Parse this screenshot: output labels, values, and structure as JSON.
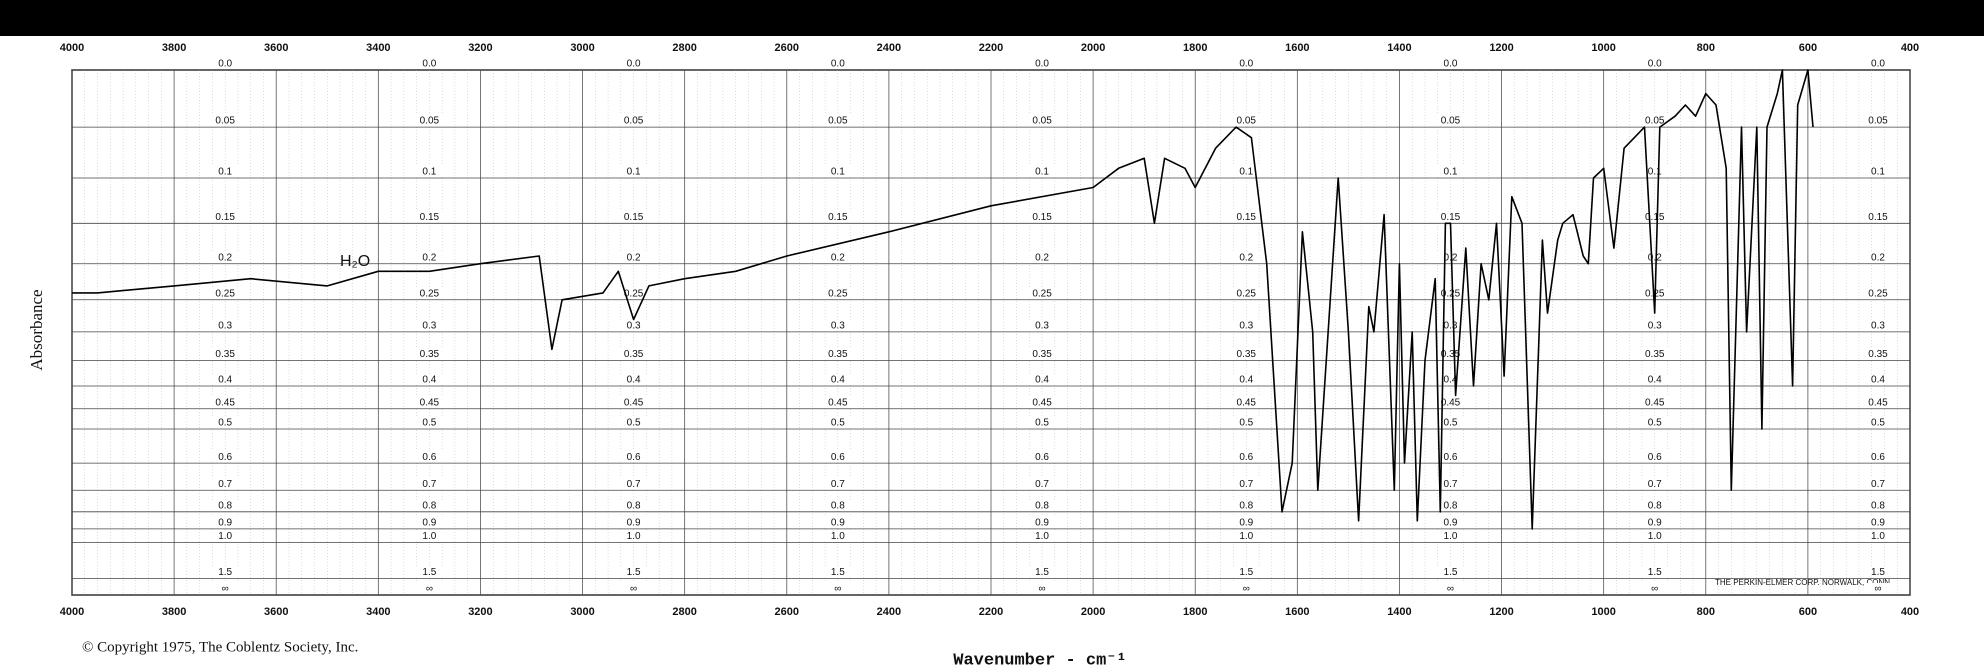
{
  "chart_data": {
    "type": "line",
    "y_label": "Absorbance",
    "x_label": "Wavenumber - cm⁻¹",
    "copyright": "© Copyright 1975, The Coblentz Society, Inc.",
    "maker": "THE PERKIN-ELMER CORP. NORWALK, CONN",
    "annotation": "H₂O",
    "y_scale": "transmittance",
    "color": "#000000",
    "grid": true,
    "xlim": [
      4000,
      400
    ],
    "xticks": [
      4000,
      3800,
      3600,
      3400,
      3200,
      3000,
      2800,
      2600,
      2400,
      2200,
      2000,
      1800,
      1600,
      1400,
      1200,
      1000,
      800,
      600,
      400
    ],
    "ylim": [
      0,
      null
    ],
    "yticks": [
      {
        "value": 0,
        "label": "0.0"
      },
      0.05,
      0.1,
      0.15,
      0.2,
      0.25,
      0.3,
      0.35,
      0.4,
      0.45,
      0.5,
      0.6,
      0.7,
      0.8,
      0.9,
      {
        "value": 1,
        "label": "1.0"
      },
      1.5,
      {
        "value": null,
        "label": "∞"
      }
    ],
    "x": [
      4000,
      3950,
      3800,
      3650,
      3500,
      3400,
      3300,
      3200,
      3085,
      3060,
      3040,
      2960,
      2930,
      2900,
      2870,
      2800,
      2700,
      2600,
      2400,
      2200,
      2000,
      1950,
      1900,
      1880,
      1860,
      1820,
      1800,
      1760,
      1720,
      1690,
      1660,
      1630,
      1610,
      1590,
      1570,
      1560,
      1520,
      1500,
      1480,
      1460,
      1450,
      1430,
      1410,
      1400,
      1390,
      1375,
      1365,
      1350,
      1330,
      1320,
      1310,
      1300,
      1290,
      1270,
      1255,
      1240,
      1225,
      1210,
      1195,
      1180,
      1160,
      1140,
      1120,
      1110,
      1090,
      1080,
      1060,
      1040,
      1030,
      1020,
      1000,
      980,
      960,
      940,
      920,
      900,
      890,
      860,
      840,
      820,
      800,
      780,
      760,
      750,
      730,
      720,
      700,
      690,
      680,
      660,
      650,
      630,
      620,
      600,
      590
    ],
    "values": [
      0.24,
      0.24,
      0.23,
      0.22,
      0.23,
      0.21,
      0.21,
      0.2,
      0.19,
      0.33,
      0.25,
      0.24,
      0.21,
      0.28,
      0.23,
      0.22,
      0.21,
      0.19,
      0.16,
      0.13,
      0.11,
      0.09,
      0.08,
      0.15,
      0.08,
      0.09,
      0.11,
      0.07,
      0.05,
      0.06,
      0.2,
      0.8,
      0.6,
      0.16,
      0.3,
      0.7,
      0.1,
      0.3,
      0.85,
      0.26,
      0.3,
      0.14,
      0.7,
      0.2,
      0.6,
      0.3,
      0.85,
      0.35,
      0.22,
      0.8,
      0.15,
      0.15,
      0.42,
      0.18,
      0.4,
      0.2,
      0.25,
      0.15,
      0.38,
      0.12,
      0.15,
      0.9,
      0.17,
      0.27,
      0.17,
      0.15,
      0.14,
      0.19,
      0.2,
      0.1,
      0.09,
      0.18,
      0.07,
      0.06,
      0.05,
      0.27,
      0.05,
      0.04,
      0.03,
      0.04,
      0.02,
      0.03,
      0.09,
      0.7,
      0.05,
      0.3,
      0.05,
      0.5,
      0.05,
      0.02,
      0,
      0.4,
      0.03,
      0,
      0.05
    ]
  }
}
